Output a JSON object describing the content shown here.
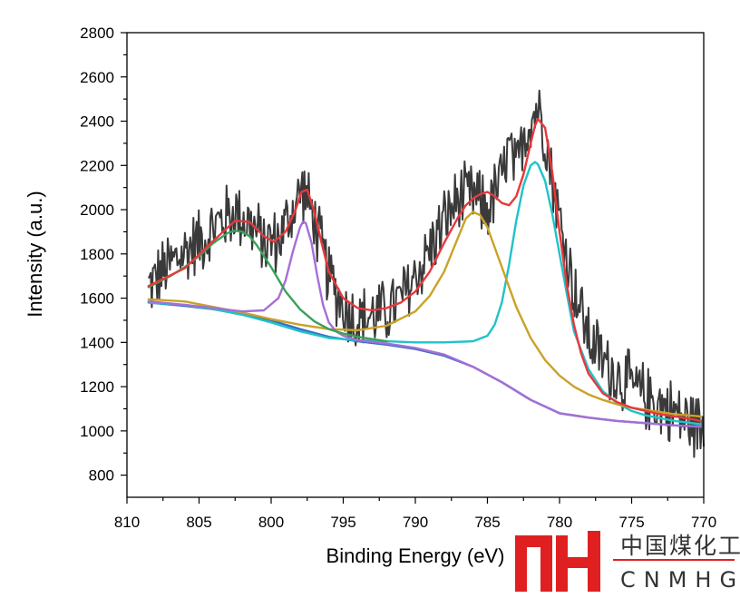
{
  "chart_data": {
    "type": "line",
    "xlabel": "Binding Energy (eV)",
    "ylabel": "Intensity (a.u.)",
    "xlim": [
      810,
      770
    ],
    "ylim": [
      700,
      2800
    ],
    "x_reversed": true,
    "x_ticks": [
      "810",
      "805",
      "800",
      "795",
      "790",
      "785",
      "780",
      "775",
      "770"
    ],
    "y_ticks": [
      "800",
      "1000",
      "1200",
      "1400",
      "1600",
      "1800",
      "2000",
      "2200",
      "2400",
      "2600",
      "2800"
    ],
    "raw_data": {
      "color": "#3a3a3a",
      "x": [
        808.5,
        807.5,
        806.5,
        805.5,
        804.5,
        803.5,
        802.5,
        801.5,
        800.5,
        799.5,
        798.5,
        797.8,
        797.0,
        796.0,
        795.0,
        794.0,
        793.0,
        792.0,
        791.0,
        790.0,
        789.0,
        788.0,
        787.0,
        786.0,
        785.0,
        784.0,
        783.5,
        783.0,
        782.5,
        782.0,
        781.5,
        781.0,
        780.5,
        780.0,
        779.0,
        778.0,
        777.0,
        776.0,
        775.0,
        774.0,
        773.0,
        772.0,
        771.0,
        770.0
      ],
      "y": [
        1650,
        1720,
        1780,
        1840,
        1880,
        1950,
        1990,
        1940,
        1850,
        1860,
        2000,
        2100,
        1950,
        1700,
        1560,
        1500,
        1520,
        1540,
        1590,
        1700,
        1820,
        1950,
        2050,
        2060,
        2000,
        2140,
        2280,
        2150,
        2350,
        2400,
        2470,
        2350,
        2150,
        1950,
        1650,
        1430,
        1320,
        1250,
        1200,
        1150,
        1120,
        1080,
        1040,
        1020
      ]
    },
    "series": [
      {
        "color": "#e8383b",
        "x": [
          808.5,
          806,
          804,
          802.5,
          801.5,
          800.5,
          799.8,
          799,
          798.3,
          797.9,
          797.5,
          797,
          796.5,
          796,
          795,
          794,
          793,
          792,
          791,
          790,
          789,
          788,
          787,
          786.5,
          786,
          785.5,
          785,
          784.5,
          784,
          783.5,
          783,
          782.5,
          782,
          781.7,
          781.5,
          781,
          780.5,
          780,
          779.5,
          779,
          778.5,
          778,
          777,
          776,
          775,
          774,
          773,
          772,
          771,
          770.2
        ],
        "y": [
          1655,
          1735,
          1860,
          1950,
          1945,
          1880,
          1855,
          1900,
          2000,
          2080,
          2090,
          1990,
          1850,
          1720,
          1600,
          1555,
          1545,
          1555,
          1580,
          1630,
          1720,
          1850,
          1970,
          2020,
          2050,
          2070,
          2080,
          2060,
          2030,
          2020,
          2060,
          2160,
          2300,
          2380,
          2410,
          2370,
          2170,
          1900,
          1660,
          1480,
          1350,
          1260,
          1170,
          1130,
          1105,
          1090,
          1075,
          1065,
          1055,
          1045
        ]
      },
      {
        "color": "#3aa05a",
        "x": [
          808.5,
          807,
          806,
          805,
          804,
          803,
          802.5,
          802,
          801.5,
          801,
          800,
          799,
          798,
          797,
          796,
          795,
          794,
          793,
          792
        ],
        "y": [
          1650,
          1700,
          1740,
          1790,
          1850,
          1895,
          1905,
          1900,
          1880,
          1840,
          1740,
          1630,
          1550,
          1495,
          1460,
          1440,
          1425,
          1415,
          1405
        ]
      },
      {
        "color": "#a56fd6",
        "x": [
          808.5,
          806,
          804,
          802,
          800.5,
          799.5,
          799,
          798.5,
          798,
          797.8,
          797.6,
          797.2,
          796.8,
          796.4,
          796,
          795.5,
          795,
          794,
          792,
          790,
          788,
          786,
          784,
          782,
          780,
          778,
          776,
          774,
          772,
          770.2
        ],
        "y": [
          1585,
          1570,
          1555,
          1540,
          1545,
          1600,
          1680,
          1810,
          1920,
          1945,
          1940,
          1850,
          1700,
          1570,
          1490,
          1450,
          1430,
          1410,
          1395,
          1375,
          1345,
          1290,
          1220,
          1140,
          1080,
          1060,
          1045,
          1035,
          1025,
          1020
        ]
      },
      {
        "color": "#c9a227",
        "x": [
          808.5,
          806,
          804,
          802,
          800,
          798,
          796,
          794,
          792,
          790,
          789,
          788,
          787,
          786.5,
          786,
          785.5,
          785,
          784,
          783,
          782,
          781,
          780,
          779,
          778,
          777,
          776,
          775,
          774,
          773,
          772,
          771,
          770.2
        ],
        "y": [
          1595,
          1585,
          1560,
          1535,
          1505,
          1480,
          1460,
          1455,
          1475,
          1540,
          1610,
          1720,
          1880,
          1960,
          1990,
          1975,
          1920,
          1740,
          1560,
          1420,
          1320,
          1250,
          1200,
          1165,
          1140,
          1120,
          1105,
          1095,
          1085,
          1075,
          1070,
          1065
        ]
      },
      {
        "color": "#1fc3c9",
        "x": [
          808.5,
          806,
          804,
          802,
          800,
          798,
          796,
          794,
          792,
          790,
          788,
          786,
          785,
          784.5,
          784,
          783.5,
          783,
          782.5,
          782,
          781.7,
          781.5,
          781,
          780.5,
          780,
          779.5,
          779,
          778,
          777,
          776,
          775,
          774,
          772,
          770.2
        ],
        "y": [
          1580,
          1570,
          1550,
          1525,
          1490,
          1450,
          1420,
          1410,
          1405,
          1400,
          1400,
          1405,
          1430,
          1480,
          1580,
          1750,
          1950,
          2110,
          2200,
          2215,
          2205,
          2130,
          1980,
          1800,
          1620,
          1450,
          1280,
          1180,
          1125,
          1090,
          1070,
          1045,
          1030
        ]
      },
      {
        "color": "#3b6fc4",
        "x": [
          808.5,
          806,
          804,
          802,
          800,
          798,
          796,
          794,
          792,
          790,
          788,
          786,
          784,
          782,
          780,
          778,
          776,
          774,
          772,
          770.2
        ],
        "y": [
          1580,
          1565,
          1550,
          1530,
          1500,
          1460,
          1425,
          1405,
          1390,
          1370,
          1340,
          1290,
          1220,
          1140,
          1080,
          1060,
          1045,
          1035,
          1025,
          1018
        ]
      }
    ]
  },
  "watermark": {
    "logo_text": "MH",
    "cn_text": "中国煤化工",
    "en_text": "CNMHG",
    "color": "#e02020"
  }
}
